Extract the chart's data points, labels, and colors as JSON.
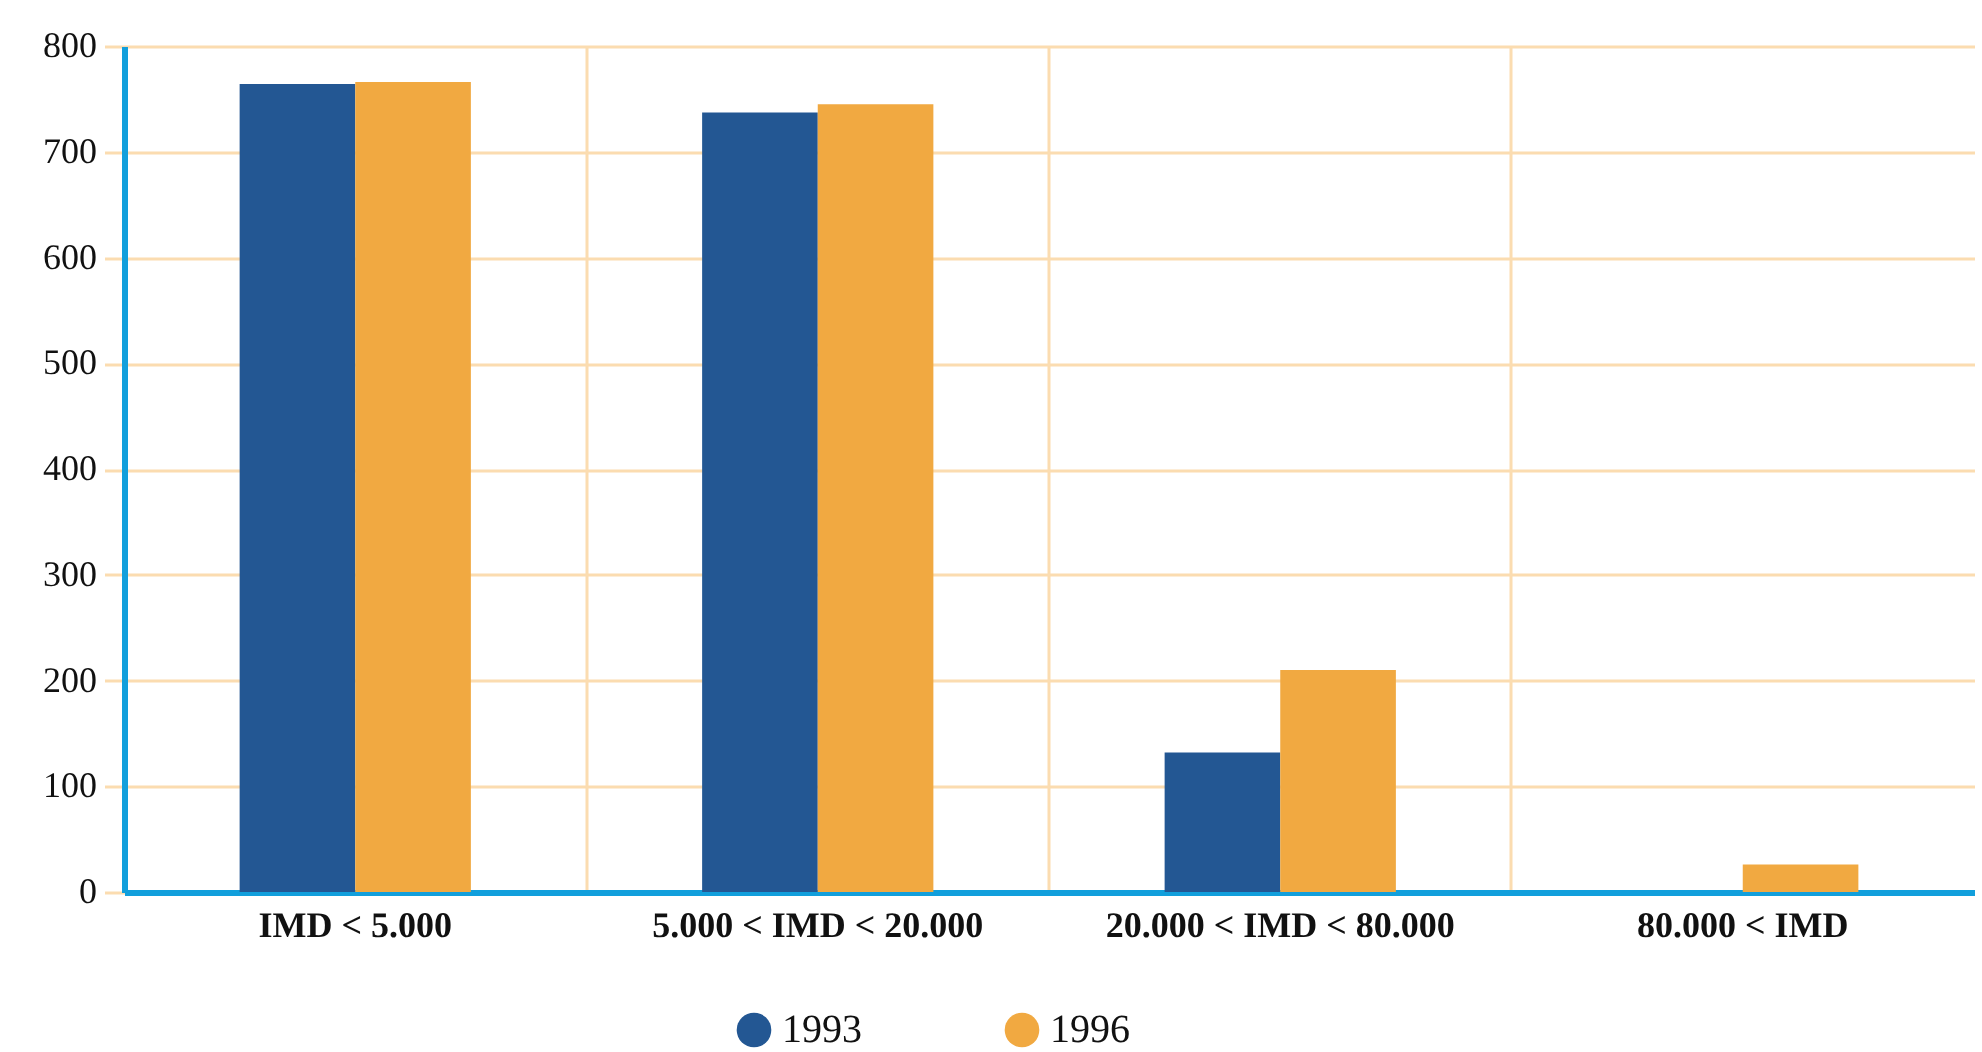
{
  "chart_data": {
    "type": "bar",
    "categories": [
      "IMD < 5.000",
      "5.000 < IMD < 20.000",
      "20.000 < IMD < 80.000",
      "80.000 < IMD"
    ],
    "series": [
      {
        "name": "1993",
        "color": "#235793",
        "values": [
          764,
          737,
          132,
          null
        ]
      },
      {
        "name": "1996",
        "color": "#f1a941",
        "values": [
          766,
          745,
          210,
          26
        ]
      }
    ],
    "ylim": [
      0,
      800
    ],
    "yticks": [
      0,
      100,
      200,
      300,
      400,
      500,
      600,
      700,
      800
    ],
    "grid": true,
    "legend": "bottom"
  }
}
